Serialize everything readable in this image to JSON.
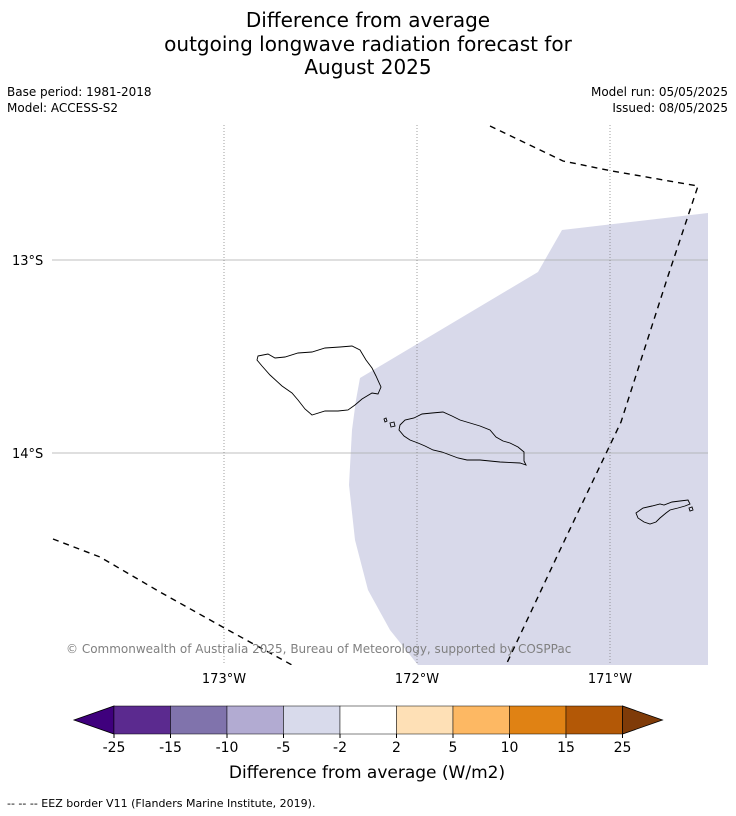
{
  "title": {
    "line1": "Difference from average",
    "line2": "outgoing longwave radiation forecast for",
    "line3": "August 2025"
  },
  "meta": {
    "base_period": "Base period: 1981-2018",
    "model": "Model: ACCESS-S2",
    "model_run": "Model run: 05/05/2025",
    "issued": "Issued: 08/05/2025"
  },
  "map": {
    "lat_labels": [
      "13°S",
      "14°S"
    ],
    "lon_labels": [
      "173°W",
      "172°W",
      "171°W"
    ],
    "anomaly_fill_color": "#d8d9ea",
    "copyright": "© Commonwealth of Australia 2025, Bureau of Meteorology, supported by COSPPac"
  },
  "colorbar": {
    "colors": [
      "#3f007d",
      "#5b2a8f",
      "#8073ac",
      "#b2abd2",
      "#d8daeb",
      "#ffffff",
      "#fee0b6",
      "#fdb863",
      "#e08214",
      "#b35806",
      "#7f3b08"
    ],
    "tick_labels": [
      "-25",
      "-15",
      "-10",
      "-5",
      "-2",
      "2",
      "5",
      "10",
      "15",
      "25"
    ],
    "label": "Difference from average (W/m2)"
  },
  "footnote": "--  --  -- EEZ border V11 (Flanders Marine Institute, 2019)."
}
